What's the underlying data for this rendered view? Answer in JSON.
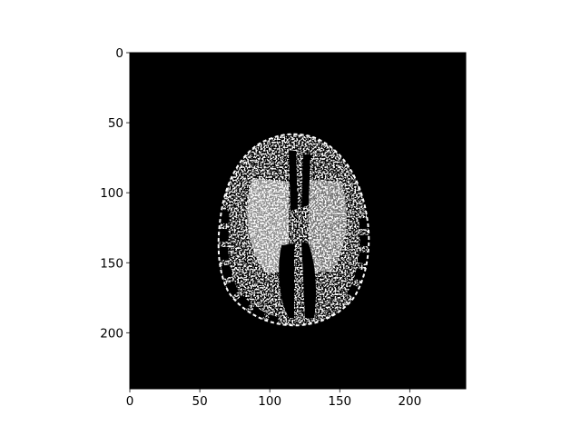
{
  "chart_data": {
    "type": "heatmap",
    "colormap": "gray",
    "background_color": "#000000",
    "image_shape": [
      240,
      240
    ],
    "xlim": [
      0,
      240
    ],
    "ylim": [
      240,
      0
    ],
    "x_ticks": [
      0,
      50,
      100,
      150,
      200
    ],
    "y_ticks": [
      0,
      50,
      100,
      150,
      200
    ],
    "x_tick_labels": [
      "0",
      "50",
      "100",
      "150",
      "200"
    ],
    "y_tick_labels": [
      "0",
      "50",
      "100",
      "150",
      "200"
    ],
    "title": "",
    "xlabel": "",
    "ylabel": "",
    "grid": false,
    "content": "axial brain slice, thresholded black/white"
  }
}
